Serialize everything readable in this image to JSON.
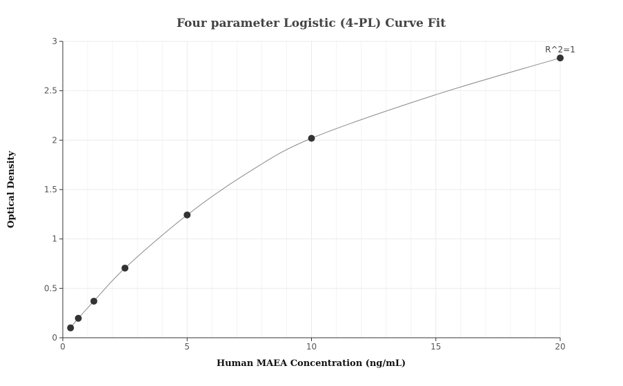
{
  "chart_data": {
    "type": "scatter",
    "title": "Four parameter Logistic (4-PL) Curve Fit",
    "xlabel": "Human MAEA Concentration (ng/mL)",
    "ylabel": "Optical Density",
    "xlim": [
      0,
      20
    ],
    "ylim": [
      0,
      3
    ],
    "x_ticks": [
      0,
      5,
      10,
      15,
      20
    ],
    "y_ticks": [
      0,
      0.5,
      1,
      1.5,
      2,
      2.5,
      3
    ],
    "x_tick_labels": [
      "0",
      "5",
      "10",
      "15",
      "20"
    ],
    "y_tick_labels": [
      "0",
      "0.5",
      "1",
      "1.5",
      "2",
      "2.5",
      "3"
    ],
    "grid": true,
    "points": {
      "x": [
        0.3125,
        0.625,
        1.25,
        2.5,
        5,
        10,
        20
      ],
      "y": [
        0.1,
        0.197,
        0.37,
        0.705,
        1.243,
        2.019,
        2.832
      ]
    },
    "fit_curve": {
      "model": "4PL",
      "x": [
        0.3125,
        0.625,
        1.25,
        2.5,
        5,
        7.5,
        10,
        15,
        20
      ],
      "y": [
        0.1,
        0.197,
        0.37,
        0.705,
        1.243,
        1.68,
        2.019,
        2.46,
        2.832
      ]
    },
    "annotation": "R^2=1",
    "colors": {
      "points": "#333333",
      "curve": "#888888",
      "grid": "#ebebeb",
      "axis": "#333333"
    }
  }
}
